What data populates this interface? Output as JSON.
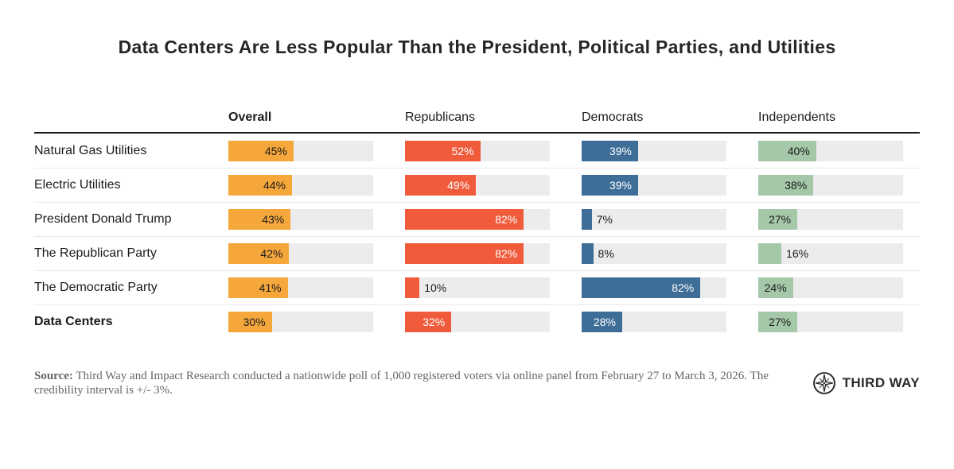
{
  "title": "Data Centers Are Less Popular Than the President, Political Parties, and Utilities",
  "chart_data": {
    "type": "bar",
    "orientation": "horizontal",
    "value_suffix": "%",
    "xlim": [
      0,
      100
    ],
    "track_color": "#ececec",
    "categories": [
      "Natural Gas Utilities",
      "Electric Utilities",
      "President Donald Trump",
      "The Republican Party",
      "The Democratic Party",
      "Data Centers"
    ],
    "bold_categories": [
      "Data Centers"
    ],
    "series": [
      {
        "name": "Overall",
        "color": "#f6a73c",
        "label_color": "#1a1a1a",
        "values": [
          45,
          44,
          43,
          42,
          41,
          30
        ]
      },
      {
        "name": "Republicans",
        "color": "#f05b3c",
        "label_color": "#ffffff",
        "values": [
          52,
          49,
          82,
          82,
          10,
          32
        ]
      },
      {
        "name": "Democrats",
        "color": "#3e6d97",
        "label_color": "#ffffff",
        "values": [
          39,
          39,
          7,
          8,
          82,
          28
        ]
      },
      {
        "name": "Independents",
        "color": "#a5c8a9",
        "label_color": "#1a1a1a",
        "values": [
          40,
          38,
          27,
          16,
          24,
          27
        ]
      }
    ]
  },
  "footer": {
    "source_label": "Source:",
    "source_text": " Third Way and Impact Research conducted a nationwide poll of 1,000 registered voters via online panel from February 27 to March 3, 2026. The credibility interval is +/- 3%.",
    "logo_text": "THIRD WAY"
  }
}
